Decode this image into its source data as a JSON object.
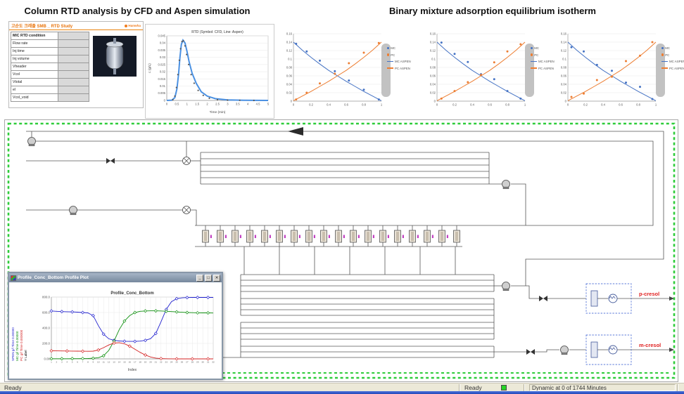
{
  "titles": {
    "left": "Column RTD analysis by CFD and Aspen simulation",
    "right": "Binary mixture adsorption equilibrium isotherm"
  },
  "rtd_window": {
    "title": "고순도 크레졸 SMB _ RTD Study",
    "logo": "Hanwha",
    "table": {
      "header": "MIC RTD condition",
      "rows": [
        "Flow rate",
        "Inj time",
        "Inj volume",
        "Vheader",
        "Vcol",
        "Vtotal",
        "el",
        "Vcol_void"
      ]
    }
  },
  "flowsheet": {
    "stream_labels": {
      "top": "p-cresol",
      "bottom": "m-cresol"
    },
    "boundary_color": "#2ecc3a"
  },
  "profile_window": {
    "title": "Profile_Conc_Bottom Profile Plot",
    "buttons": {
      "min": "_",
      "max": "□",
      "close": "✕"
    },
    "axis_labels": [
      {
        "text": "SPEN g/l Time 0.00000",
        "color": "#2323cf"
      },
      {
        "text": "MC g/l Time 0.00000",
        "color": "#0f8f0f"
      },
      {
        "text": "PC g/l Time 0.000000",
        "color": "#d42222"
      },
      {
        "text": "Y Label",
        "color": "#000000"
      }
    ]
  },
  "status_bar": {
    "left": "Ready",
    "mid": "Ready",
    "dynamic": "Dynamic at 0 of 1744 Minutes"
  },
  "chart_data": [
    {
      "id": "rtd",
      "type": "line",
      "title": "RTD (Symbol: CFD, Line: Aspen)",
      "xlabel": "Time (min)",
      "ylabel": "c (g/L)",
      "xlim": [
        0,
        5
      ],
      "ylim": [
        0,
        0.045
      ],
      "x_ticks": [
        0,
        0.5,
        1,
        1.5,
        2,
        2.5,
        3,
        3.5,
        4,
        4.5,
        5
      ],
      "y_ticks": [
        0,
        0.005,
        0.01,
        0.015,
        0.02,
        0.025,
        0.03,
        0.035,
        0.04,
        0.045
      ],
      "series": [
        {
          "name": "Aspen",
          "style": "line",
          "color": "#4a90e2",
          "width": 2,
          "x": [
            0,
            0.25,
            0.4,
            0.5,
            0.58,
            0.65,
            0.72,
            0.8,
            0.9,
            1,
            1.1,
            1.25,
            1.45,
            1.7,
            2,
            2.4,
            3,
            3.8,
            5
          ],
          "y": [
            0,
            0.0002,
            0.002,
            0.008,
            0.018,
            0.03,
            0.039,
            0.042,
            0.04,
            0.034,
            0.027,
            0.019,
            0.012,
            0.006,
            0.003,
            0.0012,
            0.0004,
            0.0001,
            0
          ]
        },
        {
          "name": "CFD",
          "style": "dots",
          "color": "#5a5a5a",
          "size": 1.1,
          "x": [
            0.3,
            0.4,
            0.48,
            0.55,
            0.62,
            0.68,
            0.75,
            0.82,
            0.9,
            0.98,
            1.08,
            1.2,
            1.35,
            1.55,
            1.8,
            2.1,
            2.5,
            3,
            3.6,
            4.3
          ],
          "y": [
            0.0005,
            0.003,
            0.009,
            0.018,
            0.028,
            0.036,
            0.041,
            0.0415,
            0.038,
            0.032,
            0.025,
            0.018,
            0.012,
            0.007,
            0.0035,
            0.0015,
            0.0006,
            0.0002,
            0.0001,
            0
          ]
        }
      ]
    },
    {
      "id": "isotherm-1",
      "type": "scatter",
      "xlim": [
        0,
        1
      ],
      "ylim": [
        0,
        0.16
      ],
      "x_ticks": [
        0,
        0.2,
        0.4,
        0.6,
        0.8,
        1
      ],
      "y_ticks": [
        0,
        0.02,
        0.04,
        0.06,
        0.08,
        0.1,
        0.12,
        0.14,
        0.16
      ],
      "legend_position": "right",
      "legend": [
        {
          "label": "MC",
          "marker": "dot",
          "color": "#4472c4"
        },
        {
          "label": "PC",
          "marker": "dot",
          "color": "#ed7d31"
        },
        {
          "label": "MC ASPEN",
          "marker": "line",
          "color": "#4472c4"
        },
        {
          "label": "PC ASPEN",
          "marker": "line",
          "color": "#ed7d31"
        }
      ],
      "series": [
        {
          "name": "MC ASPEN",
          "style": "line",
          "color": "#4472c4",
          "width": 1,
          "x": [
            0,
            0.1,
            0.2,
            0.3,
            0.4,
            0.5,
            0.6,
            0.7,
            0.8,
            0.9,
            1
          ],
          "y": [
            0.14,
            0.121,
            0.104,
            0.088,
            0.073,
            0.06,
            0.047,
            0.035,
            0.023,
            0.012,
            0.001
          ]
        },
        {
          "name": "PC ASPEN",
          "style": "line",
          "color": "#ed7d31",
          "width": 1,
          "x": [
            0,
            0.1,
            0.2,
            0.3,
            0.4,
            0.5,
            0.6,
            0.7,
            0.8,
            0.9,
            1
          ],
          "y": [
            0.001,
            0.012,
            0.023,
            0.035,
            0.047,
            0.06,
            0.073,
            0.088,
            0.104,
            0.121,
            0.14
          ]
        },
        {
          "name": "MC",
          "style": "dots",
          "color": "#4472c4",
          "size": 1.5,
          "x": [
            0.03,
            0.15,
            0.3,
            0.47,
            0.63,
            0.8,
            0.97
          ],
          "y": [
            0.136,
            0.118,
            0.096,
            0.071,
            0.049,
            0.027,
            0.004
          ]
        },
        {
          "name": "PC",
          "style": "dots",
          "color": "#ed7d31",
          "size": 1.5,
          "x": [
            0.03,
            0.15,
            0.3,
            0.47,
            0.63,
            0.8,
            0.97
          ],
          "y": [
            0.004,
            0.02,
            0.042,
            0.065,
            0.09,
            0.115,
            0.138
          ]
        }
      ]
    },
    {
      "id": "isotherm-2",
      "type": "scatter",
      "xlim": [
        0,
        1
      ],
      "ylim": [
        0,
        0.16
      ],
      "x_ticks": [
        0,
        0.2,
        0.4,
        0.6,
        0.8,
        1
      ],
      "y_ticks": [
        0,
        0.02,
        0.04,
        0.06,
        0.08,
        0.1,
        0.12,
        0.14,
        0.16
      ],
      "legend_position": "right",
      "legend": [
        {
          "label": "MC",
          "marker": "dot",
          "color": "#4472c4"
        },
        {
          "label": "PC",
          "marker": "dot",
          "color": "#ed7d31"
        },
        {
          "label": "MC ASPEN",
          "marker": "line",
          "color": "#4472c4"
        },
        {
          "label": "PC ASPEN",
          "marker": "line",
          "color": "#ed7d31"
        }
      ],
      "series": [
        {
          "name": "MC ASPEN",
          "style": "line",
          "color": "#4472c4",
          "width": 1,
          "x": [
            0,
            0.1,
            0.2,
            0.3,
            0.4,
            0.5,
            0.6,
            0.7,
            0.8,
            0.9,
            1
          ],
          "y": [
            0.14,
            0.121,
            0.104,
            0.088,
            0.073,
            0.06,
            0.047,
            0.035,
            0.023,
            0.012,
            0.001
          ]
        },
        {
          "name": "PC ASPEN",
          "style": "line",
          "color": "#ed7d31",
          "width": 1,
          "x": [
            0,
            0.1,
            0.2,
            0.3,
            0.4,
            0.5,
            0.6,
            0.7,
            0.8,
            0.9,
            1
          ],
          "y": [
            0.001,
            0.012,
            0.023,
            0.035,
            0.047,
            0.06,
            0.073,
            0.088,
            0.104,
            0.121,
            0.14
          ]
        },
        {
          "name": "MC",
          "style": "dots",
          "color": "#4472c4",
          "size": 1.5,
          "x": [
            0.05,
            0.2,
            0.35,
            0.5,
            0.65,
            0.8,
            0.95
          ],
          "y": [
            0.139,
            0.112,
            0.093,
            0.064,
            0.052,
            0.024,
            0.006
          ]
        },
        {
          "name": "PC",
          "style": "dots",
          "color": "#ed7d31",
          "size": 1.5,
          "x": [
            0.05,
            0.2,
            0.35,
            0.5,
            0.65,
            0.8,
            0.95
          ],
          "y": [
            0.006,
            0.024,
            0.045,
            0.062,
            0.092,
            0.118,
            0.135
          ]
        }
      ]
    },
    {
      "id": "isotherm-3",
      "type": "scatter",
      "xlim": [
        0,
        1
      ],
      "ylim": [
        0,
        0.16
      ],
      "x_ticks": [
        0,
        0.2,
        0.4,
        0.6,
        0.8,
        1
      ],
      "y_ticks": [
        0,
        0.02,
        0.04,
        0.06,
        0.08,
        0.1,
        0.12,
        0.14,
        0.16
      ],
      "legend_position": "right",
      "legend": [
        {
          "label": "MC",
          "marker": "dot",
          "color": "#4472c4"
        },
        {
          "label": "PC",
          "marker": "dot",
          "color": "#ed7d31"
        },
        {
          "label": "MC ASPEN",
          "marker": "line",
          "color": "#4472c4"
        },
        {
          "label": "PC ASPEN",
          "marker": "line",
          "color": "#ed7d31"
        }
      ],
      "series": [
        {
          "name": "MC ASPEN",
          "style": "line",
          "color": "#4472c4",
          "width": 1,
          "x": [
            0,
            0.1,
            0.2,
            0.3,
            0.4,
            0.5,
            0.6,
            0.7,
            0.8,
            0.9,
            1
          ],
          "y": [
            0.14,
            0.121,
            0.104,
            0.088,
            0.073,
            0.06,
            0.047,
            0.035,
            0.023,
            0.012,
            0.001
          ]
        },
        {
          "name": "PC ASPEN",
          "style": "line",
          "color": "#ed7d31",
          "width": 1,
          "x": [
            0,
            0.1,
            0.2,
            0.3,
            0.4,
            0.5,
            0.6,
            0.7,
            0.8,
            0.9,
            1
          ],
          "y": [
            0.001,
            0.012,
            0.023,
            0.035,
            0.047,
            0.06,
            0.073,
            0.088,
            0.104,
            0.121,
            0.14
          ]
        },
        {
          "name": "MC",
          "style": "dots",
          "color": "#4472c4",
          "size": 1.5,
          "x": [
            0.04,
            0.18,
            0.33,
            0.5,
            0.66,
            0.82,
            0.96
          ],
          "y": [
            0.128,
            0.118,
            0.086,
            0.072,
            0.044,
            0.034,
            0.005
          ]
        },
        {
          "name": "PC",
          "style": "dots",
          "color": "#ed7d31",
          "size": 1.5,
          "x": [
            0.04,
            0.18,
            0.33,
            0.5,
            0.66,
            0.82,
            0.96
          ],
          "y": [
            0.01,
            0.018,
            0.05,
            0.058,
            0.095,
            0.108,
            0.14
          ]
        }
      ]
    },
    {
      "id": "profile_conc_bottom",
      "type": "line",
      "title": "Profile_Conc_Bottom",
      "xlabel": "Index",
      "xlim": [
        1,
        32
      ],
      "ylim": [
        0,
        800
      ],
      "x_ticks": [
        1,
        2,
        3,
        4,
        5,
        6,
        7,
        8,
        9,
        10,
        11,
        12,
        13,
        14,
        15,
        16,
        17,
        18,
        19,
        20,
        21,
        22,
        23,
        24,
        25,
        26,
        27,
        28,
        29,
        30,
        31,
        32
      ],
      "y_ticks": [
        0,
        200,
        400,
        600,
        800
      ],
      "y_tick_labels": [
        "0.00",
        "200.0",
        "400.0",
        "600.0",
        "800.0"
      ],
      "series": [
        {
          "name": "SPEN g/l",
          "style": "line",
          "color": "#2323cf",
          "width": 0.9,
          "marker": "diamond",
          "marker_step": 2,
          "values": [
            620,
            615,
            612,
            610,
            608,
            605,
            600,
            595,
            560,
            430,
            320,
            260,
            240,
            232,
            228,
            226,
            226,
            230,
            240,
            262,
            330,
            480,
            640,
            740,
            780,
            790,
            794,
            795,
            795,
            795,
            795,
            795
          ]
        },
        {
          "name": "MC g/l",
          "style": "line",
          "color": "#0f8f0f",
          "width": 0.9,
          "marker": "diamond",
          "marker_step": 2,
          "values": [
            2,
            2,
            2,
            2,
            3,
            3,
            4,
            5,
            8,
            15,
            40,
            110,
            230,
            380,
            490,
            560,
            600,
            615,
            620,
            622,
            622,
            620,
            616,
            612,
            608,
            604,
            600,
            598,
            596,
            595,
            595,
            594
          ]
        },
        {
          "name": "PC g/l",
          "style": "line",
          "color": "#d42222",
          "width": 0.9,
          "marker": "diamond",
          "marker_step": 3,
          "values": [
            105,
            104,
            103,
            102,
            101,
            100,
            99,
            98,
            100,
            115,
            145,
            180,
            205,
            210,
            195,
            165,
            125,
            85,
            50,
            25,
            10,
            4,
            2,
            1,
            0,
            0,
            0,
            0,
            0,
            0,
            0,
            0
          ]
        }
      ]
    }
  ]
}
